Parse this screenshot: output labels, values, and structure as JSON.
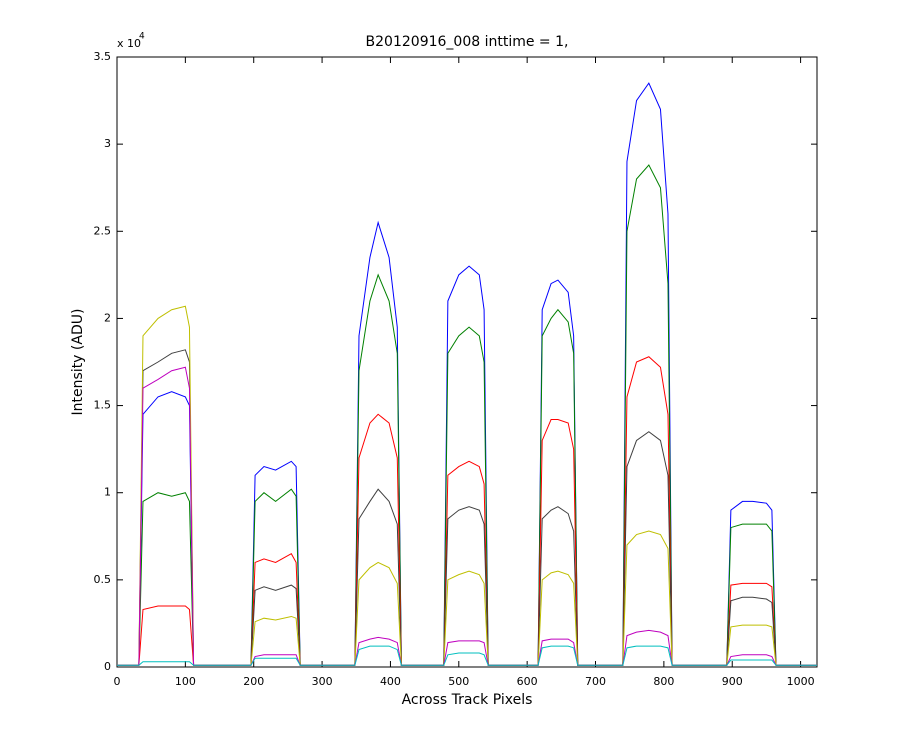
{
  "chart_data": {
    "type": "line",
    "title": "B20120916_008 inttime = 1,",
    "x_label": "Across Track Pixels",
    "y_label": "Intensity (ADU)",
    "y_multiplier": "x 10",
    "y_multiplier_exponent": "4",
    "xlim": [
      0,
      1024
    ],
    "xticks": [
      0,
      100,
      200,
      300,
      400,
      500,
      600,
      700,
      800,
      900,
      1000
    ],
    "ylim": [
      0,
      3.5
    ],
    "yticks": [
      0,
      0.5,
      1,
      1.5,
      2,
      2.5,
      3,
      3.5
    ],
    "grid": false,
    "x": [
      0,
      32,
      38,
      60,
      80,
      100,
      106,
      112,
      196,
      202,
      215,
      232,
      255,
      262,
      268,
      348,
      354,
      370,
      382,
      398,
      410,
      416,
      478,
      484,
      500,
      515,
      530,
      537,
      543,
      616,
      622,
      635,
      645,
      660,
      668,
      674,
      740,
      746,
      760,
      778,
      795,
      806,
      812,
      892,
      898,
      915,
      930,
      950,
      958,
      964,
      1024
    ],
    "series": [
      {
        "color": "#0000ff",
        "values": [
          0.01,
          0.01,
          1.45,
          1.55,
          1.58,
          1.55,
          1.5,
          0.01,
          0.01,
          1.1,
          1.15,
          1.13,
          1.18,
          1.15,
          0.01,
          0.01,
          1.9,
          2.35,
          2.55,
          2.35,
          1.95,
          0.01,
          0.01,
          2.1,
          2.25,
          2.3,
          2.25,
          2.05,
          0.01,
          0.01,
          2.05,
          2.2,
          2.22,
          2.15,
          1.9,
          0.01,
          0.01,
          2.9,
          3.25,
          3.35,
          3.2,
          2.6,
          0.01,
          0.01,
          0.9,
          0.95,
          0.95,
          0.94,
          0.9,
          0.01,
          0.01
        ]
      },
      {
        "color": "#008000",
        "values": [
          0.01,
          0.01,
          0.95,
          1.0,
          0.98,
          1.0,
          0.95,
          0.01,
          0.01,
          0.95,
          1.0,
          0.95,
          1.02,
          0.98,
          0.01,
          0.01,
          1.7,
          2.1,
          2.25,
          2.1,
          1.8,
          0.01,
          0.01,
          1.8,
          1.9,
          1.95,
          1.9,
          1.75,
          0.01,
          0.01,
          1.9,
          2.0,
          2.05,
          1.98,
          1.8,
          0.01,
          0.01,
          2.5,
          2.8,
          2.88,
          2.75,
          2.2,
          0.01,
          0.01,
          0.8,
          0.82,
          0.82,
          0.82,
          0.78,
          0.01,
          0.01
        ]
      },
      {
        "color": "#ff0000",
        "values": [
          0.01,
          0.01,
          0.33,
          0.35,
          0.35,
          0.35,
          0.33,
          0.01,
          0.01,
          0.6,
          0.62,
          0.6,
          0.65,
          0.6,
          0.01,
          0.01,
          1.2,
          1.4,
          1.45,
          1.4,
          1.2,
          0.01,
          0.01,
          1.1,
          1.15,
          1.18,
          1.15,
          1.05,
          0.01,
          0.01,
          1.3,
          1.42,
          1.42,
          1.4,
          1.25,
          0.01,
          0.01,
          1.55,
          1.75,
          1.78,
          1.72,
          1.45,
          0.01,
          0.01,
          0.47,
          0.48,
          0.48,
          0.48,
          0.46,
          0.01,
          0.01
        ]
      },
      {
        "color": "#404040",
        "values": [
          0.01,
          0.01,
          1.7,
          1.75,
          1.8,
          1.82,
          1.75,
          0.01,
          0.01,
          0.44,
          0.46,
          0.44,
          0.47,
          0.45,
          0.01,
          0.01,
          0.85,
          0.95,
          1.02,
          0.95,
          0.82,
          0.01,
          0.01,
          0.85,
          0.9,
          0.92,
          0.9,
          0.82,
          0.01,
          0.01,
          0.85,
          0.9,
          0.92,
          0.88,
          0.78,
          0.01,
          0.01,
          1.15,
          1.3,
          1.35,
          1.3,
          1.1,
          0.01,
          0.01,
          0.38,
          0.4,
          0.4,
          0.39,
          0.37,
          0.01,
          0.01
        ]
      },
      {
        "color": "#bfbf00",
        "values": [
          0.01,
          0.01,
          1.9,
          2.0,
          2.05,
          2.07,
          1.95,
          0.01,
          0.01,
          0.26,
          0.28,
          0.27,
          0.29,
          0.28,
          0.01,
          0.01,
          0.5,
          0.57,
          0.6,
          0.57,
          0.48,
          0.01,
          0.01,
          0.5,
          0.53,
          0.55,
          0.53,
          0.48,
          0.01,
          0.01,
          0.5,
          0.54,
          0.55,
          0.53,
          0.48,
          0.01,
          0.01,
          0.7,
          0.76,
          0.78,
          0.76,
          0.68,
          0.01,
          0.01,
          0.23,
          0.24,
          0.24,
          0.24,
          0.23,
          0.01,
          0.01
        ]
      },
      {
        "color": "#bf00bf",
        "values": [
          0.01,
          0.01,
          1.6,
          1.65,
          1.7,
          1.72,
          1.6,
          0.01,
          0.01,
          0.06,
          0.07,
          0.07,
          0.07,
          0.07,
          0.01,
          0.01,
          0.14,
          0.16,
          0.17,
          0.16,
          0.14,
          0.01,
          0.01,
          0.14,
          0.15,
          0.15,
          0.15,
          0.14,
          0.01,
          0.01,
          0.15,
          0.16,
          0.16,
          0.16,
          0.14,
          0.01,
          0.01,
          0.18,
          0.2,
          0.21,
          0.2,
          0.18,
          0.01,
          0.01,
          0.06,
          0.07,
          0.07,
          0.07,
          0.06,
          0.01,
          0.01
        ]
      },
      {
        "color": "#00bfbf",
        "values": [
          0.01,
          0.01,
          0.03,
          0.03,
          0.03,
          0.03,
          0.03,
          0.01,
          0.01,
          0.05,
          0.05,
          0.05,
          0.05,
          0.05,
          0.01,
          0.01,
          0.1,
          0.12,
          0.12,
          0.12,
          0.1,
          0.01,
          0.01,
          0.07,
          0.08,
          0.08,
          0.08,
          0.07,
          0.01,
          0.01,
          0.11,
          0.12,
          0.12,
          0.12,
          0.11,
          0.01,
          0.01,
          0.11,
          0.12,
          0.12,
          0.12,
          0.11,
          0.01,
          0.01,
          0.04,
          0.04,
          0.04,
          0.04,
          0.04,
          0.01,
          0.01
        ]
      }
    ]
  }
}
